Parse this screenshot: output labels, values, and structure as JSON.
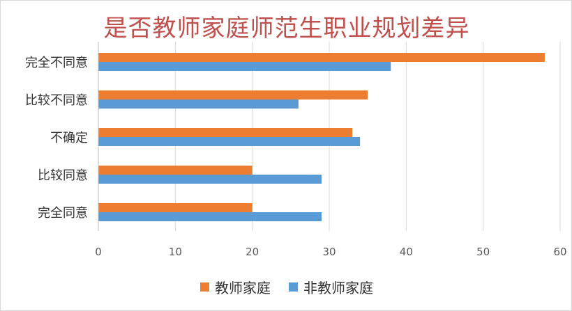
{
  "chart_data": {
    "type": "bar",
    "orientation": "horizontal",
    "title": "是否教师家庭师范生职业规划差异",
    "categories": [
      "完全不同意",
      "比较不同意",
      "不确定",
      "比较同意",
      "完全同意"
    ],
    "series": [
      {
        "name": "教师家庭",
        "color": "#ed7d31",
        "values": [
          58,
          35,
          33,
          20,
          20
        ]
      },
      {
        "name": "非教师家庭",
        "color": "#5b9bd5",
        "values": [
          38,
          26,
          34,
          29,
          29
        ]
      }
    ],
    "xlim": [
      0,
      60
    ],
    "xticks": [
      0,
      10,
      20,
      30,
      40,
      50,
      60
    ],
    "grid": true,
    "legend_position": "bottom"
  }
}
